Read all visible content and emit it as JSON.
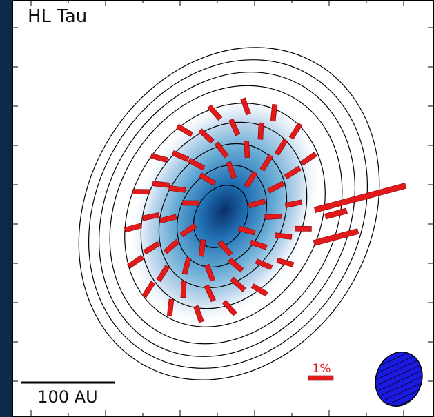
{
  "title": "HL Tau",
  "polarization_scale": {
    "label": "1%"
  },
  "scale_bar": {
    "label": "100 AU"
  }
}
